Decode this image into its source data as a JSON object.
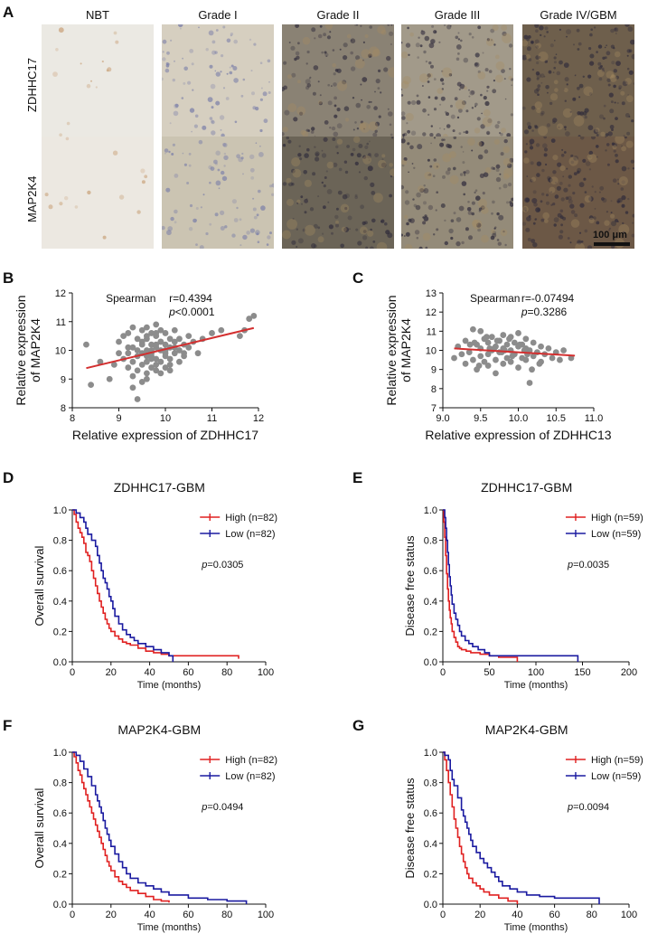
{
  "panel_a": {
    "letter": "A",
    "columns": [
      "NBT",
      "Grade I",
      "Grade II",
      "Grade III",
      "Grade IV/GBM"
    ],
    "rows": [
      "ZDHHC17",
      "MAP2K4"
    ],
    "scale_bar": "100 μm",
    "tile_colors": [
      [
        "#ebe9e3",
        "#d6cfc0",
        "#8a8274",
        "#a29a8a",
        "#6e5f4c"
      ],
      [
        "#ece8e1",
        "#cbc4b2",
        "#6b6457",
        "#948b79",
        "#6c5846"
      ]
    ]
  },
  "chart_data": [
    {
      "id": "B",
      "type": "scatter",
      "annotation_label": "Spearman",
      "r_text": "r=0.4394",
      "p_prefix": "p",
      "p_text": "<0.0001",
      "xlabel": "Relative expression of ZDHHC17",
      "ylabel_line1": "Relative expression",
      "ylabel_line2": "of MAP2K4",
      "xlim": [
        8,
        12
      ],
      "ylim": [
        8,
        12
      ],
      "xticks": [
        "8",
        "9",
        "10",
        "11",
        "12"
      ],
      "yticks": [
        "8",
        "9",
        "10",
        "11",
        "12"
      ],
      "point_color": "#8c8c8c",
      "line_color": "#d32f2f",
      "fit_line": {
        "x": [
          8.3,
          11.9
        ],
        "y": [
          9.38,
          10.78
        ]
      },
      "points_x": [
        8.3,
        8.4,
        8.6,
        8.8,
        8.9,
        9.0,
        9.0,
        9.1,
        9.1,
        9.2,
        9.2,
        9.2,
        9.3,
        9.3,
        9.3,
        9.3,
        9.4,
        9.4,
        9.4,
        9.4,
        9.5,
        9.5,
        9.5,
        9.5,
        9.5,
        9.6,
        9.6,
        9.6,
        9.6,
        9.6,
        9.6,
        9.7,
        9.7,
        9.7,
        9.7,
        9.7,
        9.7,
        9.8,
        9.8,
        9.8,
        9.8,
        9.8,
        9.8,
        9.9,
        9.9,
        9.9,
        9.9,
        9.9,
        10.0,
        10.0,
        10.0,
        10.0,
        10.0,
        10.1,
        10.1,
        10.1,
        10.1,
        10.2,
        10.2,
        10.2,
        10.3,
        10.3,
        10.3,
        10.4,
        10.4,
        10.5,
        10.5,
        10.6,
        10.7,
        10.8,
        11.0,
        11.2,
        11.6,
        11.7,
        11.8,
        11.9,
        9.2,
        9.4,
        9.6,
        9.8,
        10.0,
        10.2,
        9.5,
        9.7,
        9.9,
        9.3,
        9.6,
        9.8,
        10.1,
        10.4
      ],
      "points_y": [
        10.2,
        8.8,
        9.6,
        9.0,
        9.5,
        9.9,
        10.3,
        9.7,
        10.5,
        9.4,
        9.9,
        10.6,
        9.1,
        9.6,
        10.1,
        10.8,
        8.3,
        9.3,
        9.8,
        10.4,
        8.9,
        9.5,
        9.9,
        10.3,
        10.7,
        9.2,
        9.6,
        10.0,
        10.4,
        10.8,
        9.0,
        9.4,
        9.8,
        10.2,
        10.6,
        9.9,
        10.0,
        9.3,
        9.7,
        10.1,
        10.5,
        10.9,
        9.5,
        9.6,
        10.0,
        10.3,
        10.7,
        9.2,
        9.4,
        9.8,
        10.2,
        10.6,
        10.0,
        9.7,
        10.1,
        10.4,
        9.5,
        9.9,
        10.3,
        10.7,
        9.6,
        10.0,
        10.4,
        9.8,
        10.2,
        10.1,
        10.5,
        10.3,
        9.9,
        10.4,
        10.6,
        10.7,
        10.5,
        10.7,
        11.1,
        11.2,
        10.1,
        10.0,
        9.8,
        10.2,
        9.9,
        10.1,
        10.2,
        9.7,
        10.3,
        8.7,
        10.5,
        10.6,
        9.3,
        9.9
      ]
    },
    {
      "id": "C",
      "type": "scatter",
      "annotation_label": "Spearman",
      "r_text": "r=-0.07494",
      "p_prefix": "p",
      "p_text": "=0.3286",
      "xlabel": "Relative expression of ZDHHC13",
      "ylabel_line1": "Relative expression",
      "ylabel_line2": "of MAP2K4",
      "xlim": [
        9.0,
        11.0
      ],
      "ylim": [
        7,
        13
      ],
      "xticks": [
        "9.0",
        "9.5",
        "10.0",
        "10.5",
        "11.0"
      ],
      "yticks": [
        "7",
        "8",
        "9",
        "10",
        "11",
        "12",
        "13"
      ],
      "point_color": "#8c8c8c",
      "line_color": "#d32f2f",
      "fit_line": {
        "x": [
          9.15,
          10.75
        ],
        "y": [
          10.1,
          9.72
        ]
      },
      "points_x": [
        9.15,
        9.2,
        9.25,
        9.3,
        9.3,
        9.35,
        9.4,
        9.4,
        9.45,
        9.45,
        9.5,
        9.5,
        9.5,
        9.55,
        9.55,
        9.6,
        9.6,
        9.6,
        9.65,
        9.65,
        9.7,
        9.7,
        9.7,
        9.75,
        9.75,
        9.8,
        9.8,
        9.8,
        9.85,
        9.85,
        9.9,
        9.9,
        9.9,
        9.95,
        9.95,
        10.0,
        10.0,
        10.0,
        10.05,
        10.05,
        10.1,
        10.1,
        10.1,
        10.15,
        10.15,
        10.2,
        10.2,
        10.25,
        10.3,
        10.3,
        10.35,
        10.4,
        10.45,
        10.5,
        10.55,
        10.6,
        10.7,
        9.42,
        9.58,
        9.72,
        9.88,
        10.02,
        10.18,
        9.36,
        9.68,
        9.92,
        10.08,
        9.48,
        9.82,
        10.12,
        10.28,
        9.62,
        9.78
      ],
      "points_y": [
        9.6,
        10.2,
        9.8,
        10.5,
        9.3,
        9.9,
        11.1,
        9.5,
        10.3,
        9.0,
        11.0,
        9.7,
        10.1,
        9.4,
        10.6,
        9.8,
        10.4,
        9.2,
        10.0,
        10.7,
        9.5,
        10.2,
        8.8,
        9.9,
        10.5,
        9.3,
        10.1,
        10.8,
        9.6,
        10.3,
        9.4,
        10.0,
        10.7,
        9.8,
        10.4,
        9.1,
        10.2,
        10.9,
        9.6,
        10.3,
        9.5,
        10.1,
        10.6,
        8.3,
        10.0,
        9.7,
        10.4,
        9.9,
        9.4,
        10.2,
        9.8,
        10.1,
        9.6,
        9.9,
        9.5,
        10.0,
        9.6,
        10.4,
        10.7,
        10.5,
        10.6,
        10.3,
        9.0,
        10.3,
        10.1,
        9.7,
        10.0,
        9.2,
        10.0,
        9.8,
        9.3,
        10.1,
        9.9
      ]
    },
    {
      "id": "D",
      "type": "line",
      "title": "ZDHHC17-GBM",
      "xlabel": "Time (months)",
      "ylabel": "Overall survival",
      "xlim": [
        0,
        100
      ],
      "ylim": [
        0,
        1.0
      ],
      "xticks": [
        "0",
        "20",
        "40",
        "60",
        "80",
        "100"
      ],
      "yticks": [
        "0.0",
        "0.2",
        "0.4",
        "0.6",
        "0.8",
        "1.0"
      ],
      "p_prefix": "p",
      "p_text": "=0.0305",
      "series": [
        {
          "name": "High (n=82)",
          "color": "#e02020",
          "x": [
            0,
            1,
            2,
            3,
            4,
            5,
            6,
            7,
            8,
            9,
            10,
            11,
            12,
            13,
            14,
            15,
            16,
            17,
            18,
            19,
            20,
            22,
            24,
            26,
            28,
            30,
            34,
            38,
            42,
            46,
            50,
            86
          ],
          "y": [
            1.0,
            0.97,
            0.92,
            0.88,
            0.85,
            0.82,
            0.78,
            0.72,
            0.7,
            0.66,
            0.6,
            0.55,
            0.5,
            0.45,
            0.4,
            0.36,
            0.32,
            0.28,
            0.25,
            0.22,
            0.2,
            0.17,
            0.15,
            0.13,
            0.12,
            0.11,
            0.09,
            0.07,
            0.06,
            0.05,
            0.04,
            0.02
          ]
        },
        {
          "name": "Low (n=82)",
          "color": "#1a1aa0",
          "x": [
            0,
            2,
            4,
            6,
            7,
            8,
            10,
            12,
            13,
            14,
            15,
            16,
            17,
            18,
            19,
            20,
            21,
            22,
            24,
            26,
            28,
            30,
            32,
            34,
            38,
            42,
            46,
            50,
            52
          ],
          "y": [
            1.0,
            0.98,
            0.95,
            0.92,
            0.88,
            0.84,
            0.8,
            0.76,
            0.7,
            0.65,
            0.6,
            0.55,
            0.52,
            0.48,
            0.43,
            0.4,
            0.35,
            0.3,
            0.25,
            0.21,
            0.18,
            0.16,
            0.14,
            0.12,
            0.1,
            0.08,
            0.06,
            0.04,
            0.0
          ]
        }
      ]
    },
    {
      "id": "E",
      "type": "line",
      "title": "ZDHHC17-GBM",
      "xlabel": "Time (months)",
      "ylabel": "Disease free status",
      "xlim": [
        0,
        200
      ],
      "ylim": [
        0,
        1.0
      ],
      "xticks": [
        "0",
        "50",
        "100",
        "150",
        "200"
      ],
      "yticks": [
        "0.0",
        "0.2",
        "0.4",
        "0.6",
        "0.8",
        "1.0"
      ],
      "p_prefix": "p",
      "p_text": "=0.0035",
      "series": [
        {
          "name": "High (n=59)",
          "color": "#e02020",
          "x": [
            0,
            1,
            2,
            3,
            4,
            5,
            6,
            7,
            8,
            9,
            10,
            12,
            14,
            16,
            18,
            20,
            25,
            30,
            40,
            50,
            60,
            80
          ],
          "y": [
            1.0,
            0.92,
            0.82,
            0.7,
            0.58,
            0.48,
            0.4,
            0.34,
            0.29,
            0.25,
            0.2,
            0.16,
            0.13,
            0.1,
            0.09,
            0.08,
            0.07,
            0.06,
            0.05,
            0.04,
            0.03,
            0.0
          ]
        },
        {
          "name": "Low (n=59)",
          "color": "#1a1aa0",
          "x": [
            0,
            2,
            3,
            4,
            5,
            6,
            7,
            8,
            9,
            10,
            12,
            14,
            16,
            18,
            20,
            24,
            28,
            32,
            38,
            45,
            50,
            145
          ],
          "y": [
            1.0,
            0.95,
            0.88,
            0.8,
            0.72,
            0.64,
            0.56,
            0.5,
            0.44,
            0.38,
            0.32,
            0.28,
            0.24,
            0.2,
            0.17,
            0.14,
            0.12,
            0.1,
            0.08,
            0.06,
            0.04,
            0.0
          ]
        }
      ]
    },
    {
      "id": "F",
      "type": "line",
      "title": "MAP2K4-GBM",
      "xlabel": "Time (months)",
      "ylabel": "Overall survival",
      "xlim": [
        0,
        100
      ],
      "ylim": [
        0,
        1.0
      ],
      "xticks": [
        "0",
        "20",
        "40",
        "60",
        "80",
        "100"
      ],
      "yticks": [
        "0.0",
        "0.2",
        "0.4",
        "0.6",
        "0.8",
        "1.0"
      ],
      "p_prefix": "p",
      "p_text": "=0.0494",
      "series": [
        {
          "name": "High (n=82)",
          "color": "#e02020",
          "x": [
            0,
            1,
            2,
            3,
            4,
            5,
            6,
            7,
            8,
            9,
            10,
            11,
            12,
            13,
            14,
            15,
            16,
            17,
            18,
            19,
            20,
            22,
            24,
            26,
            28,
            30,
            34,
            38,
            42,
            46,
            50
          ],
          "y": [
            1.0,
            0.97,
            0.93,
            0.88,
            0.85,
            0.8,
            0.76,
            0.72,
            0.68,
            0.64,
            0.6,
            0.56,
            0.52,
            0.48,
            0.44,
            0.4,
            0.36,
            0.32,
            0.28,
            0.25,
            0.22,
            0.18,
            0.15,
            0.13,
            0.11,
            0.09,
            0.07,
            0.05,
            0.03,
            0.02,
            0.01
          ]
        },
        {
          "name": "Low (n=82)",
          "color": "#1a1aa0",
          "x": [
            0,
            2,
            4,
            6,
            8,
            10,
            12,
            13,
            14,
            15,
            16,
            17,
            18,
            19,
            20,
            22,
            24,
            26,
            28,
            30,
            34,
            38,
            42,
            46,
            50,
            60,
            70,
            80,
            90
          ],
          "y": [
            1.0,
            0.98,
            0.94,
            0.89,
            0.84,
            0.78,
            0.72,
            0.68,
            0.64,
            0.6,
            0.55,
            0.5,
            0.46,
            0.42,
            0.38,
            0.33,
            0.28,
            0.24,
            0.2,
            0.17,
            0.14,
            0.12,
            0.1,
            0.08,
            0.06,
            0.04,
            0.03,
            0.02,
            0.0
          ]
        }
      ]
    },
    {
      "id": "G",
      "type": "line",
      "title": "MAP2K4-GBM",
      "xlabel": "Time (months)",
      "ylabel": "Disease free status",
      "xlim": [
        0,
        100
      ],
      "ylim": [
        0,
        1.0
      ],
      "xticks": [
        "0",
        "20",
        "40",
        "60",
        "80",
        "100"
      ],
      "yticks": [
        "0.0",
        "0.2",
        "0.4",
        "0.6",
        "0.8",
        "1.0"
      ],
      "p_prefix": "p",
      "p_text": "=0.0094",
      "series": [
        {
          "name": "High (n=59)",
          "color": "#e02020",
          "x": [
            0,
            1,
            2,
            3,
            4,
            5,
            6,
            7,
            8,
            9,
            10,
            11,
            12,
            13,
            14,
            16,
            18,
            20,
            22,
            25,
            30,
            35,
            40
          ],
          "y": [
            1.0,
            0.95,
            0.88,
            0.8,
            0.72,
            0.64,
            0.56,
            0.5,
            0.44,
            0.38,
            0.33,
            0.28,
            0.24,
            0.2,
            0.17,
            0.14,
            0.12,
            0.1,
            0.08,
            0.06,
            0.04,
            0.02,
            0.0
          ]
        },
        {
          "name": "Low (n=59)",
          "color": "#1a1aa0",
          "x": [
            0,
            1,
            3,
            4,
            5,
            6,
            8,
            10,
            11,
            12,
            13,
            14,
            15,
            16,
            18,
            20,
            22,
            24,
            26,
            28,
            30,
            32,
            36,
            40,
            45,
            52,
            60,
            84
          ],
          "y": [
            1.0,
            0.98,
            0.95,
            0.88,
            0.82,
            0.78,
            0.7,
            0.62,
            0.58,
            0.54,
            0.5,
            0.46,
            0.42,
            0.38,
            0.34,
            0.3,
            0.27,
            0.24,
            0.21,
            0.18,
            0.15,
            0.12,
            0.1,
            0.08,
            0.06,
            0.05,
            0.04,
            0.0
          ]
        }
      ]
    }
  ]
}
